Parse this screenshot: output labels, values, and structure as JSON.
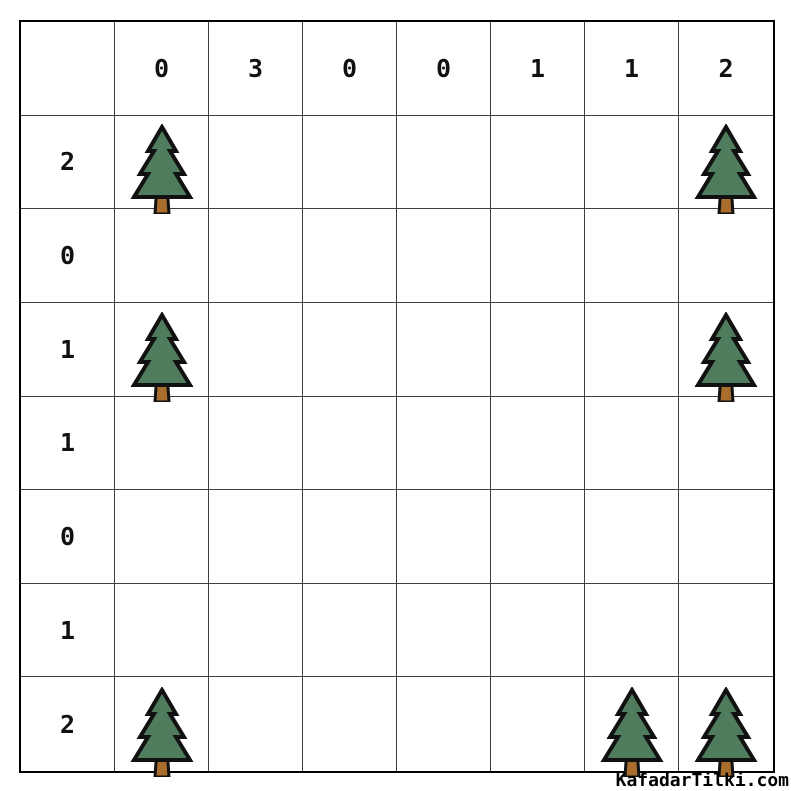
{
  "board": {
    "rows": 7,
    "cols": 7,
    "col_clues": [
      "0",
      "3",
      "0",
      "0",
      "1",
      "1",
      "2"
    ],
    "row_clues": [
      "2",
      "0",
      "1",
      "1",
      "0",
      "1",
      "2"
    ],
    "trees": [
      {
        "row": 1,
        "col": 1
      },
      {
        "row": 1,
        "col": 7
      },
      {
        "row": 3,
        "col": 1
      },
      {
        "row": 3,
        "col": 7
      },
      {
        "row": 7,
        "col": 1
      },
      {
        "row": 7,
        "col": 6
      },
      {
        "row": 7,
        "col": 7
      }
    ]
  },
  "colors": {
    "tree-green": "#507c5e",
    "trunk-brown": "#a96d2e",
    "outline": "#111111",
    "grid-line": "#3f3f3f",
    "border": "#000000",
    "text": "#111111"
  },
  "watermark": {
    "text": "KafadarTilki.com"
  }
}
